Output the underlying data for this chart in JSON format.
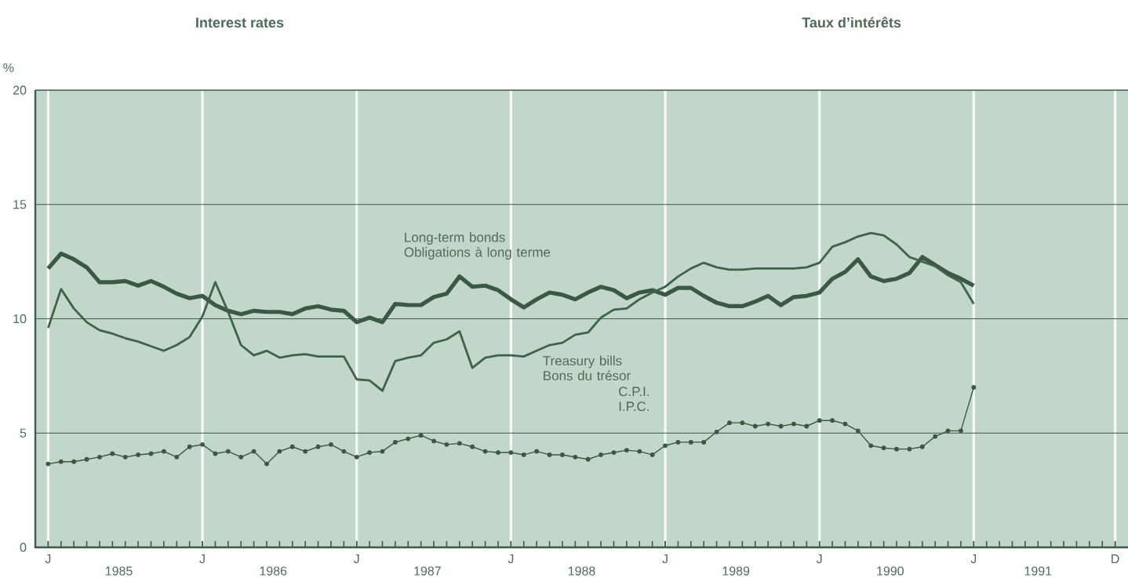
{
  "chart_data": {
    "type": "line",
    "title": "Interest rates",
    "subtitle": "Taux d’intérêts",
    "ylabel": "%",
    "categories": [
      "J",
      null,
      null,
      null,
      null,
      null,
      null,
      null,
      null,
      null,
      null,
      null,
      "J",
      null,
      null,
      null,
      null,
      null,
      null,
      null,
      null,
      null,
      null,
      null,
      "J",
      null,
      null,
      null,
      null,
      null,
      null,
      null,
      null,
      null,
      null,
      null,
      "J",
      null,
      null,
      null,
      null,
      null,
      null,
      null,
      null,
      null,
      null,
      null,
      "J",
      null,
      null,
      null,
      null,
      null,
      null,
      null,
      null,
      null,
      null,
      null,
      "J",
      null,
      null,
      null,
      null,
      null,
      null,
      null,
      null,
      null,
      null,
      null,
      "J",
      null,
      null,
      null,
      null,
      null,
      null,
      null,
      null,
      null,
      null,
      "D"
    ],
    "annotations": [
      "1985",
      "1986",
      "1987",
      "1988",
      "1989",
      "1990",
      "1991"
    ],
    "series": [
      {
        "name": "Long-term bonds Obligations à long terme",
        "color": "#3b5748",
        "marker": "none",
        "values": [
          12.2,
          12.85,
          12.6,
          12.25,
          11.6,
          11.6,
          11.65,
          11.45,
          11.65,
          11.4,
          11.1,
          10.9,
          11.0,
          10.6,
          10.35,
          10.2,
          10.35,
          10.3,
          10.3,
          10.2,
          10.45,
          10.55,
          10.4,
          10.35,
          9.85,
          10.05,
          9.85,
          10.65,
          10.6,
          10.6,
          10.95,
          11.1,
          11.85,
          11.4,
          11.45,
          11.25,
          10.85,
          10.5,
          10.85,
          11.15,
          11.05,
          10.85,
          11.15,
          11.4,
          11.25,
          10.9,
          11.15,
          11.25,
          11.05,
          11.35,
          11.35,
          11.0,
          10.7,
          10.55,
          10.55,
          10.75,
          11.0,
          10.6,
          10.95,
          11.0,
          11.15,
          11.75,
          12.05,
          12.6,
          11.85,
          11.65,
          11.75,
          12.0,
          12.7,
          12.35,
          12.0,
          11.75,
          11.45,
          null,
          null,
          null,
          null,
          null,
          null,
          null,
          null,
          null,
          null,
          null
        ]
      },
      {
        "name": "Treasury bills Bons du trésor",
        "color": "#41614f",
        "marker": "none",
        "values": [
          9.6,
          11.3,
          10.45,
          9.85,
          9.5,
          9.35,
          9.15,
          9.0,
          8.8,
          8.6,
          8.85,
          9.2,
          10.1,
          11.6,
          10.3,
          8.85,
          8.4,
          8.6,
          8.3,
          8.4,
          8.45,
          8.35,
          8.35,
          8.35,
          7.35,
          7.3,
          6.85,
          8.15,
          8.3,
          8.4,
          8.95,
          9.1,
          9.45,
          7.85,
          8.3,
          8.4,
          8.4,
          8.35,
          8.6,
          8.85,
          8.95,
          9.3,
          9.4,
          10.05,
          10.4,
          10.45,
          10.85,
          11.15,
          11.4,
          11.85,
          12.2,
          12.45,
          12.25,
          12.15,
          12.15,
          12.2,
          12.2,
          12.2,
          12.2,
          12.25,
          12.45,
          13.15,
          13.35,
          13.6,
          13.75,
          13.65,
          13.25,
          12.7,
          12.5,
          12.3,
          11.9,
          11.6,
          10.65,
          null,
          null,
          null,
          null,
          null,
          null,
          null,
          null,
          null,
          null,
          null
        ]
      },
      {
        "name": "C.P.I. I.P.C.",
        "color": "#3b5748",
        "marker": "circle",
        "values": [
          3.65,
          3.75,
          3.75,
          3.85,
          3.95,
          4.1,
          3.95,
          4.05,
          4.1,
          4.2,
          3.95,
          4.4,
          4.5,
          4.1,
          4.2,
          3.95,
          4.2,
          3.65,
          4.2,
          4.4,
          4.2,
          4.4,
          4.5,
          4.2,
          3.95,
          4.15,
          4.2,
          4.6,
          4.75,
          4.9,
          4.65,
          4.5,
          4.55,
          4.4,
          4.2,
          4.15,
          4.15,
          4.05,
          4.2,
          4.05,
          4.05,
          3.95,
          3.85,
          4.05,
          4.15,
          4.25,
          4.2,
          4.05,
          4.45,
          4.6,
          4.6,
          4.6,
          5.05,
          5.45,
          5.45,
          5.3,
          5.4,
          5.3,
          5.4,
          5.3,
          5.55,
          5.55,
          5.4,
          5.1,
          4.45,
          4.35,
          4.3,
          4.3,
          4.4,
          4.85,
          5.1,
          5.1,
          7.0,
          null,
          null,
          null,
          null,
          null,
          null,
          null,
          null,
          null,
          null,
          null
        ]
      }
    ],
    "ylim": [
      0,
      20
    ],
    "yticks": [
      0,
      5,
      10,
      15,
      20
    ],
    "grid": true,
    "line_style": "solid"
  }
}
